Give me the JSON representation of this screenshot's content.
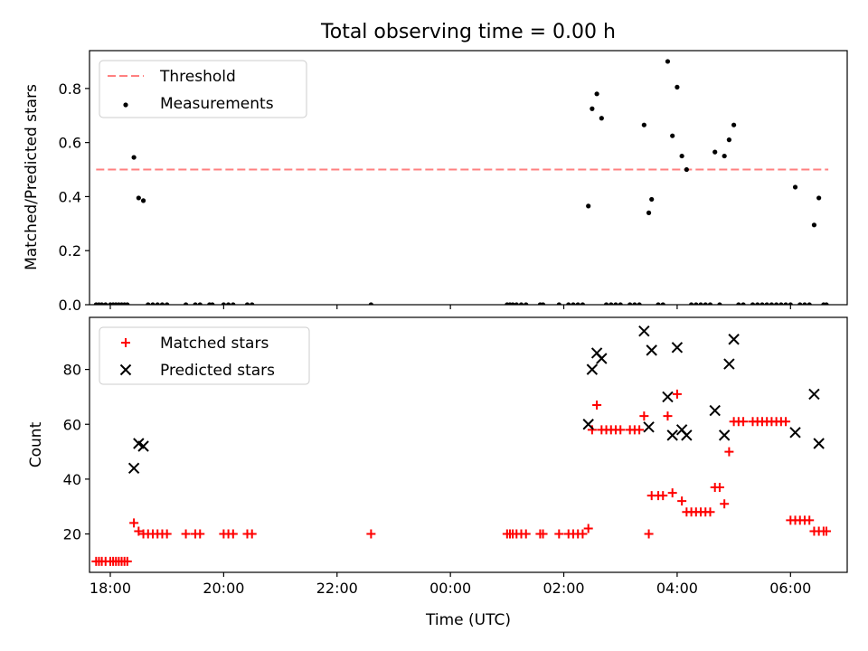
{
  "chart_data": [
    {
      "type": "scatter",
      "title": "Total observing time = 0.00 h",
      "xlabel": "",
      "ylabel": "Matched/Predicted stars",
      "xlim": [
        "17:38",
        "07:00"
      ],
      "ylim": [
        0,
        0.94
      ],
      "yticks": [
        0.0,
        0.2,
        0.4,
        0.6,
        0.8
      ],
      "yticklabels": [
        "0.0",
        "0.2",
        "0.4",
        "0.6",
        "0.8"
      ],
      "xticks": [
        "18:00",
        "20:00",
        "22:00",
        "00:00",
        "02:00",
        "04:00",
        "06:00"
      ],
      "grid": false,
      "legend_position": "upper left",
      "threshold": {
        "name": "Threshold",
        "value": 0.5,
        "x_start": "17:45",
        "x_end": "06:40",
        "color": "#ff8080"
      },
      "series": [
        {
          "name": "Measurements",
          "color": "#000000",
          "marker": "dot",
          "points": [
            [
              "17:45",
              0
            ],
            [
              "17:48",
              0
            ],
            [
              "17:51",
              0
            ],
            [
              "17:55",
              0
            ],
            [
              "18:00",
              0
            ],
            [
              "18:03",
              0
            ],
            [
              "18:06",
              0
            ],
            [
              "18:09",
              0
            ],
            [
              "18:12",
              0
            ],
            [
              "18:15",
              0
            ],
            [
              "18:18",
              0
            ],
            [
              "18:25",
              0.545
            ],
            [
              "18:30",
              0.395
            ],
            [
              "18:35",
              0.385
            ],
            [
              "18:40",
              0
            ],
            [
              "18:45",
              0
            ],
            [
              "18:50",
              0
            ],
            [
              "18:55",
              0
            ],
            [
              "19:00",
              0
            ],
            [
              "19:20",
              0
            ],
            [
              "19:30",
              0
            ],
            [
              "19:35",
              0
            ],
            [
              "19:45",
              0
            ],
            [
              "19:48",
              0
            ],
            [
              "20:00",
              0
            ],
            [
              "20:05",
              0
            ],
            [
              "20:10",
              0
            ],
            [
              "20:25",
              0
            ],
            [
              "20:30",
              0
            ],
            [
              "22:36",
              0
            ],
            [
              "01:00",
              0
            ],
            [
              "01:03",
              0
            ],
            [
              "01:06",
              0
            ],
            [
              "01:10",
              0
            ],
            [
              "01:15",
              0
            ],
            [
              "01:20",
              0
            ],
            [
              "01:35",
              0
            ],
            [
              "01:38",
              0
            ],
            [
              "01:55",
              0
            ],
            [
              "02:05",
              0
            ],
            [
              "02:10",
              0
            ],
            [
              "02:15",
              0
            ],
            [
              "02:20",
              0
            ],
            [
              "02:26",
              0.365
            ],
            [
              "02:30",
              0.725
            ],
            [
              "02:35",
              0.78
            ],
            [
              "02:40",
              0.69
            ],
            [
              "02:45",
              0
            ],
            [
              "02:50",
              0
            ],
            [
              "02:55",
              0
            ],
            [
              "03:00",
              0
            ],
            [
              "03:10",
              0
            ],
            [
              "03:15",
              0
            ],
            [
              "03:20",
              0
            ],
            [
              "03:25",
              0.665
            ],
            [
              "03:30",
              0.34
            ],
            [
              "03:33",
              0.39
            ],
            [
              "03:40",
              0
            ],
            [
              "03:45",
              0
            ],
            [
              "03:50",
              0.9
            ],
            [
              "03:55",
              0.625
            ],
            [
              "04:00",
              0.805
            ],
            [
              "04:05",
              0.55
            ],
            [
              "04:10",
              0.5
            ],
            [
              "04:15",
              0
            ],
            [
              "04:20",
              0
            ],
            [
              "04:25",
              0
            ],
            [
              "04:30",
              0
            ],
            [
              "04:35",
              0
            ],
            [
              "04:40",
              0.565
            ],
            [
              "04:45",
              0
            ],
            [
              "04:50",
              0.55
            ],
            [
              "04:55",
              0.61
            ],
            [
              "05:00",
              0.665
            ],
            [
              "05:05",
              0
            ],
            [
              "05:10",
              0
            ],
            [
              "05:20",
              0
            ],
            [
              "05:25",
              0
            ],
            [
              "05:30",
              0
            ],
            [
              "05:35",
              0
            ],
            [
              "05:40",
              0
            ],
            [
              "05:45",
              0
            ],
            [
              "05:50",
              0
            ],
            [
              "05:55",
              0
            ],
            [
              "06:00",
              0
            ],
            [
              "06:05",
              0.435
            ],
            [
              "06:10",
              0
            ],
            [
              "06:15",
              0
            ],
            [
              "06:20",
              0
            ],
            [
              "06:25",
              0.295
            ],
            [
              "06:30",
              0.395
            ],
            [
              "06:35",
              0
            ],
            [
              "06:38",
              0
            ]
          ]
        }
      ]
    },
    {
      "type": "scatter",
      "title": "",
      "xlabel": "Time (UTC)",
      "ylabel": "Count",
      "xlim": [
        "17:38",
        "07:00"
      ],
      "ylim": [
        6,
        99
      ],
      "yticks": [
        20,
        40,
        60,
        80
      ],
      "yticklabels": [
        "20",
        "40",
        "60",
        "80"
      ],
      "xticks": [
        "18:00",
        "20:00",
        "22:00",
        "00:00",
        "02:00",
        "04:00",
        "06:00"
      ],
      "xticklabels": [
        "18:00",
        "20:00",
        "22:00",
        "00:00",
        "02:00",
        "04:00",
        "06:00"
      ],
      "grid": false,
      "legend_position": "upper left",
      "series": [
        {
          "name": "Matched stars",
          "color": "#ff0000",
          "marker": "plus",
          "points": [
            [
              "17:45",
              10
            ],
            [
              "17:48",
              10
            ],
            [
              "17:51",
              10
            ],
            [
              "17:55",
              10
            ],
            [
              "18:00",
              10
            ],
            [
              "18:03",
              10
            ],
            [
              "18:06",
              10
            ],
            [
              "18:09",
              10
            ],
            [
              "18:12",
              10
            ],
            [
              "18:15",
              10
            ],
            [
              "18:18",
              10
            ],
            [
              "18:25",
              24
            ],
            [
              "18:30",
              21
            ],
            [
              "18:35",
              20
            ],
            [
              "18:40",
              20
            ],
            [
              "18:45",
              20
            ],
            [
              "18:50",
              20
            ],
            [
              "18:55",
              20
            ],
            [
              "19:00",
              20
            ],
            [
              "19:20",
              20
            ],
            [
              "19:30",
              20
            ],
            [
              "19:35",
              20
            ],
            [
              "20:00",
              20
            ],
            [
              "20:05",
              20
            ],
            [
              "20:10",
              20
            ],
            [
              "20:25",
              20
            ],
            [
              "20:30",
              20
            ],
            [
              "22:36",
              20
            ],
            [
              "01:00",
              20
            ],
            [
              "01:03",
              20
            ],
            [
              "01:06",
              20
            ],
            [
              "01:10",
              20
            ],
            [
              "01:15",
              20
            ],
            [
              "01:20",
              20
            ],
            [
              "01:35",
              20
            ],
            [
              "01:38",
              20
            ],
            [
              "01:55",
              20
            ],
            [
              "02:05",
              20
            ],
            [
              "02:10",
              20
            ],
            [
              "02:15",
              20
            ],
            [
              "02:20",
              20
            ],
            [
              "02:26",
              22
            ],
            [
              "02:30",
              58
            ],
            [
              "02:35",
              67
            ],
            [
              "02:40",
              58
            ],
            [
              "02:45",
              58
            ],
            [
              "02:50",
              58
            ],
            [
              "02:55",
              58
            ],
            [
              "03:00",
              58
            ],
            [
              "03:10",
              58
            ],
            [
              "03:15",
              58
            ],
            [
              "03:20",
              58
            ],
            [
              "03:25",
              63
            ],
            [
              "03:30",
              20
            ],
            [
              "03:33",
              34
            ],
            [
              "03:40",
              34
            ],
            [
              "03:45",
              34
            ],
            [
              "03:50",
              63
            ],
            [
              "03:55",
              35
            ],
            [
              "04:00",
              71
            ],
            [
              "04:05",
              32
            ],
            [
              "04:10",
              28
            ],
            [
              "04:15",
              28
            ],
            [
              "04:20",
              28
            ],
            [
              "04:25",
              28
            ],
            [
              "04:30",
              28
            ],
            [
              "04:35",
              28
            ],
            [
              "04:40",
              37
            ],
            [
              "04:45",
              37
            ],
            [
              "04:50",
              31
            ],
            [
              "04:55",
              50
            ],
            [
              "05:00",
              61
            ],
            [
              "05:05",
              61
            ],
            [
              "05:10",
              61
            ],
            [
              "05:20",
              61
            ],
            [
              "05:25",
              61
            ],
            [
              "05:30",
              61
            ],
            [
              "05:35",
              61
            ],
            [
              "05:40",
              61
            ],
            [
              "05:45",
              61
            ],
            [
              "05:50",
              61
            ],
            [
              "05:55",
              61
            ],
            [
              "06:00",
              25
            ],
            [
              "06:05",
              25
            ],
            [
              "06:10",
              25
            ],
            [
              "06:15",
              25
            ],
            [
              "06:20",
              25
            ],
            [
              "06:25",
              21
            ],
            [
              "06:30",
              21
            ],
            [
              "06:35",
              21
            ],
            [
              "06:38",
              21
            ]
          ]
        },
        {
          "name": "Predicted stars",
          "color": "#000000",
          "marker": "x",
          "points": [
            [
              "18:25",
              44
            ],
            [
              "18:30",
              53
            ],
            [
              "18:35",
              52
            ],
            [
              "02:26",
              60
            ],
            [
              "02:30",
              80
            ],
            [
              "02:35",
              86
            ],
            [
              "02:40",
              84
            ],
            [
              "03:25",
              94
            ],
            [
              "03:30",
              59
            ],
            [
              "03:33",
              87
            ],
            [
              "03:50",
              70
            ],
            [
              "03:55",
              56
            ],
            [
              "04:00",
              88
            ],
            [
              "04:05",
              58
            ],
            [
              "04:10",
              56
            ],
            [
              "04:40",
              65
            ],
            [
              "04:50",
              56
            ],
            [
              "04:55",
              82
            ],
            [
              "05:00",
              91
            ],
            [
              "06:05",
              57
            ],
            [
              "06:25",
              71
            ],
            [
              "06:30",
              53
            ]
          ]
        }
      ]
    }
  ]
}
